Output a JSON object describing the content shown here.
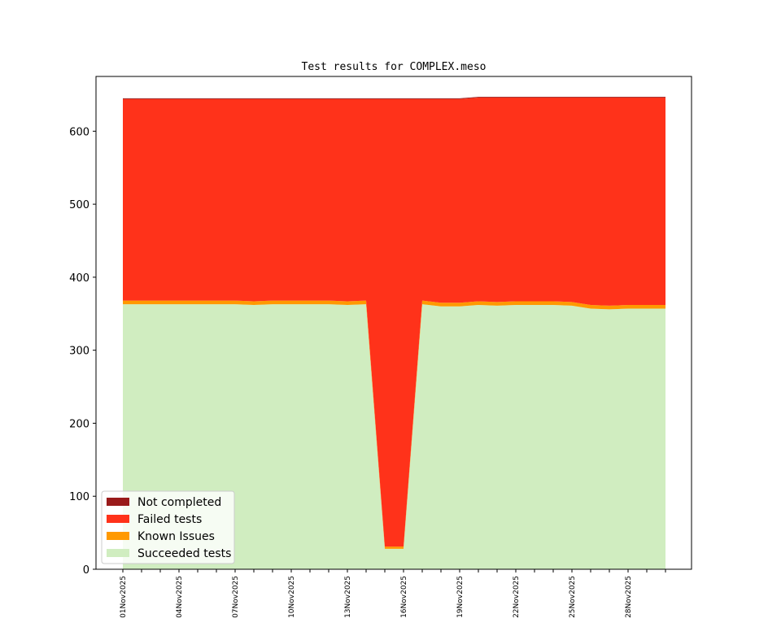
{
  "chart_data": {
    "type": "area",
    "title": "Test results for COMPLEX.meso",
    "xlabel": "",
    "ylabel": "",
    "ylim": [
      0,
      675
    ],
    "yticks": [
      0,
      100,
      200,
      300,
      400,
      500,
      600
    ],
    "x": [
      "01Nov2025",
      "02Nov2025",
      "03Nov2025",
      "04Nov2025",
      "05Nov2025",
      "06Nov2025",
      "07Nov2025",
      "08Nov2025",
      "09Nov2025",
      "10Nov2025",
      "11Nov2025",
      "12Nov2025",
      "13Nov2025",
      "14Nov2025",
      "15Nov2025",
      "16Nov2025",
      "17Nov2025",
      "18Nov2025",
      "19Nov2025",
      "20Nov2025",
      "21Nov2025",
      "22Nov2025",
      "23Nov2025",
      "24Nov2025",
      "25Nov2025",
      "26Nov2025",
      "27Nov2025",
      "28Nov2025",
      "29Nov2025",
      "30Nov2025"
    ],
    "xtick_labels": [
      "01Nov2025",
      "04Nov2025",
      "07Nov2025",
      "10Nov2025",
      "13Nov2025",
      "16Nov2025",
      "19Nov2025",
      "22Nov2025",
      "25Nov2025",
      "28Nov2025"
    ],
    "series": [
      {
        "name": "Succeeded tests",
        "color": "#d0edc0",
        "values": [
          363,
          363,
          363,
          363,
          363,
          363,
          363,
          362,
          363,
          363,
          363,
          363,
          362,
          363,
          28,
          28,
          363,
          360,
          360,
          362,
          361,
          362,
          362,
          362,
          361,
          357,
          356,
          357,
          357,
          357
        ]
      },
      {
        "name": "Known Issues",
        "color": "#ff9900",
        "values": [
          5,
          5,
          5,
          5,
          5,
          5,
          5,
          5,
          5,
          5,
          5,
          5,
          5,
          5,
          3,
          3,
          5,
          5,
          5,
          5,
          5,
          5,
          5,
          5,
          5,
          5,
          5,
          5,
          5,
          5
        ]
      },
      {
        "name": "Failed tests",
        "color": "#ff321a",
        "values": [
          276,
          276,
          276,
          276,
          276,
          276,
          276,
          277,
          276,
          276,
          276,
          276,
          277,
          276,
          613,
          613,
          276,
          279,
          279,
          279,
          280,
          279,
          279,
          279,
          280,
          284,
          285,
          284,
          284,
          284
        ]
      },
      {
        "name": "Not completed",
        "color": "#991a1a",
        "values": [
          1,
          1,
          1,
          1,
          1,
          1,
          1,
          1,
          1,
          1,
          1,
          1,
          1,
          1,
          1,
          1,
          1,
          1,
          1,
          1,
          1,
          1,
          1,
          1,
          1,
          1,
          1,
          1,
          1,
          1
        ]
      }
    ],
    "legend": {
      "position": "lower-left",
      "entries": [
        "Not completed",
        "Failed tests",
        "Known Issues",
        "Succeeded tests"
      ]
    },
    "grid": false
  }
}
